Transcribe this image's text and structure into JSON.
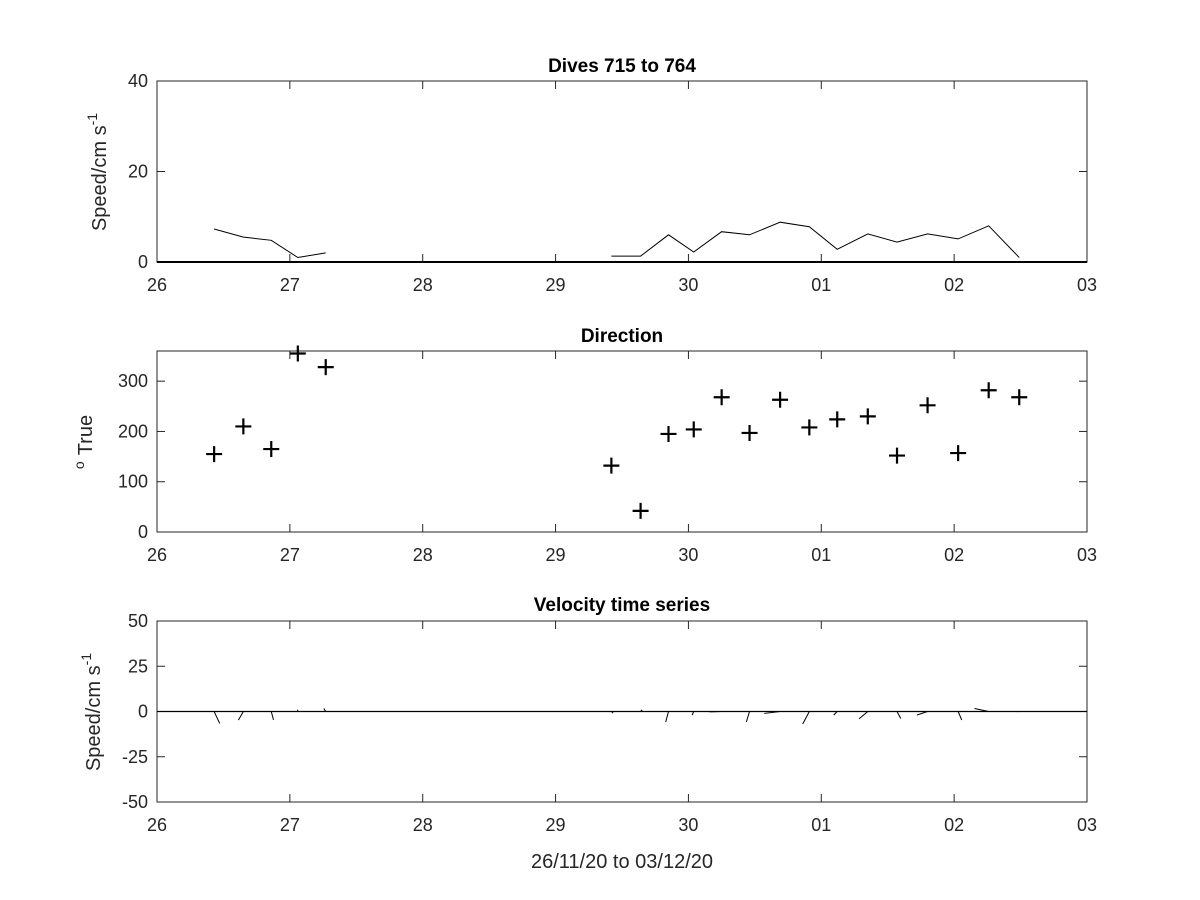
{
  "figure": {
    "xlabel": "26/11/20 to 03/12/20"
  },
  "chart_data": [
    {
      "type": "line",
      "title": "Dives 715 to 764",
      "ylabel": "Speed/cm s",
      "ylabel_sup": "-1",
      "xlim": [
        0,
        7
      ],
      "ylim": [
        0,
        40
      ],
      "x_tick_labels": [
        "26",
        "27",
        "28",
        "29",
        "30",
        "01",
        "02",
        "03"
      ],
      "y_ticks": [
        0,
        20,
        40
      ],
      "series": [
        {
          "x": [
            0.43,
            0.65,
            0.86,
            1.06,
            1.27
          ],
          "y": [
            7.3,
            5.5,
            4.8,
            1.0,
            2.0
          ]
        },
        {
          "x": [
            3.42,
            3.64,
            3.85,
            4.04,
            4.25,
            4.46,
            4.69,
            4.91,
            5.12,
            5.35,
            5.57,
            5.8,
            6.03,
            6.26,
            6.49
          ],
          "y": [
            1.3,
            1.3,
            6.0,
            2.2,
            6.7,
            6.0,
            8.8,
            7.8,
            2.8,
            6.2,
            4.4,
            6.2,
            5.1,
            8.0,
            1.0
          ]
        }
      ]
    },
    {
      "type": "scatter",
      "title": "Direction",
      "ylabel": "True",
      "ylabel_sup": "o",
      "xlim": [
        0,
        7
      ],
      "ylim": [
        0,
        360
      ],
      "x_tick_labels": [
        "26",
        "27",
        "28",
        "29",
        "30",
        "01",
        "02",
        "03"
      ],
      "y_ticks": [
        0,
        100,
        200,
        300
      ],
      "points": {
        "x": [
          0.43,
          0.65,
          0.86,
          1.06,
          1.27,
          3.42,
          3.64,
          3.85,
          4.04,
          4.25,
          4.46,
          4.69,
          4.91,
          5.12,
          5.35,
          5.57,
          5.8,
          6.03,
          6.26,
          6.49
        ],
        "y": [
          155,
          210,
          165,
          355,
          328,
          132,
          42,
          195,
          204,
          268,
          197,
          263,
          208,
          224,
          230,
          152,
          252,
          157,
          282,
          268
        ]
      }
    },
    {
      "type": "line",
      "title": "Velocity time series",
      "ylabel": "Speed/cm s",
      "ylabel_sup": "-1",
      "xlim": [
        0,
        7
      ],
      "ylim": [
        -50,
        50
      ],
      "x_tick_labels": [
        "26",
        "27",
        "28",
        "29",
        "30",
        "01",
        "02",
        "03"
      ],
      "y_ticks": [
        -50,
        -25,
        0,
        25,
        50
      ],
      "vectors": [
        {
          "x": 0.43,
          "speed": 7.3,
          "dir": 155
        },
        {
          "x": 0.65,
          "speed": 5.5,
          "dir": 210
        },
        {
          "x": 0.86,
          "speed": 4.8,
          "dir": 165
        },
        {
          "x": 1.06,
          "speed": 1.0,
          "dir": 355
        },
        {
          "x": 1.27,
          "speed": 2.0,
          "dir": 328
        },
        {
          "x": 3.42,
          "speed": 1.3,
          "dir": 132
        },
        {
          "x": 3.64,
          "speed": 1.3,
          "dir": 42
        },
        {
          "x": 3.85,
          "speed": 6.0,
          "dir": 195
        },
        {
          "x": 4.04,
          "speed": 2.2,
          "dir": 204
        },
        {
          "x": 4.25,
          "speed": 6.7,
          "dir": 268
        },
        {
          "x": 4.46,
          "speed": 6.0,
          "dir": 197
        },
        {
          "x": 4.69,
          "speed": 8.8,
          "dir": 263
        },
        {
          "x": 4.91,
          "speed": 7.8,
          "dir": 208
        },
        {
          "x": 5.12,
          "speed": 2.8,
          "dir": 224
        },
        {
          "x": 5.35,
          "speed": 6.2,
          "dir": 230
        },
        {
          "x": 5.57,
          "speed": 4.4,
          "dir": 152
        },
        {
          "x": 5.8,
          "speed": 6.2,
          "dir": 252
        },
        {
          "x": 6.03,
          "speed": 5.1,
          "dir": 157
        },
        {
          "x": 6.26,
          "speed": 8.0,
          "dir": 282
        },
        {
          "x": 6.49,
          "speed": 1.0,
          "dir": 268
        }
      ]
    }
  ]
}
